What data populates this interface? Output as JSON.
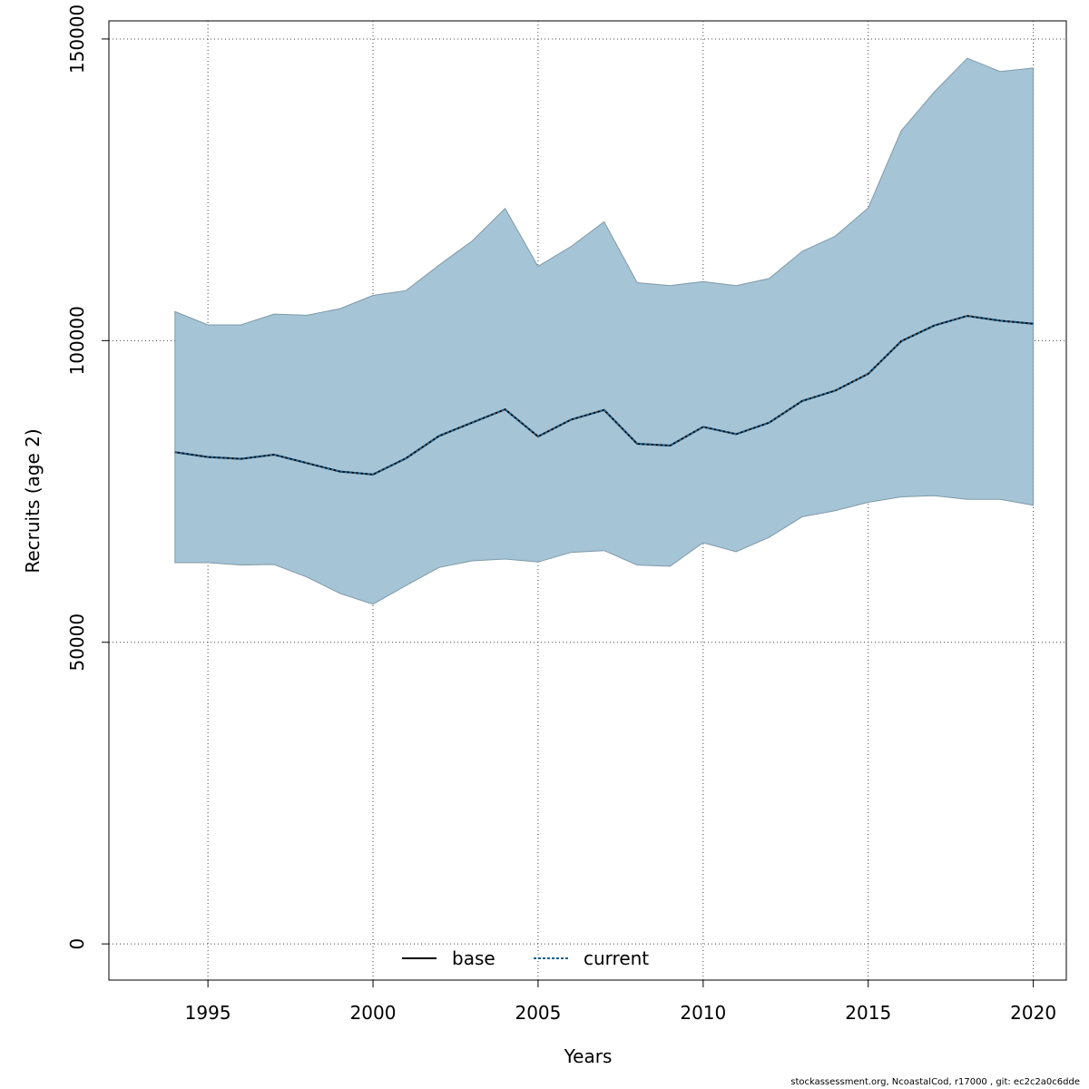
{
  "chart_data": {
    "type": "area",
    "xlabel": "Years",
    "ylabel": "Recruits (age 2)",
    "xlim": [
      1992,
      2021
    ],
    "ylim": [
      -6000,
      153000
    ],
    "x_ticks": [
      1995,
      2000,
      2005,
      2010,
      2015,
      2020
    ],
    "y_ticks": [
      0,
      50000,
      100000,
      150000
    ],
    "grid": true,
    "legend": {
      "placement": "bottom",
      "entries": [
        "base",
        "current"
      ]
    },
    "colors": {
      "band": "#a5c4d5",
      "band_edge": "#7f9aa8",
      "base": "#000000",
      "current": "#1f5f8b",
      "grid": "#444444"
    },
    "x": [
      1994,
      1995,
      1996,
      1997,
      1998,
      1999,
      2000,
      2001,
      2002,
      2003,
      2004,
      2005,
      2006,
      2007,
      2008,
      2009,
      2010,
      2011,
      2012,
      2013,
      2014,
      2015,
      2016,
      2017,
      2018,
      2019,
      2020
    ],
    "band_upper": [
      104800,
      102600,
      102600,
      104400,
      104200,
      105300,
      107500,
      108300,
      112500,
      116500,
      121900,
      112300,
      115600,
      119700,
      109600,
      109100,
      109800,
      109100,
      110300,
      114800,
      117300,
      122000,
      134800,
      141200,
      146800,
      144600,
      145200
    ],
    "band_lower": [
      63200,
      63200,
      62800,
      62900,
      60800,
      58100,
      56300,
      59400,
      62400,
      63500,
      63800,
      63300,
      64900,
      65200,
      62800,
      62600,
      66500,
      65000,
      67400,
      70800,
      71800,
      73200,
      74100,
      74300,
      73700,
      73700,
      72700
    ],
    "series": [
      {
        "name": "base",
        "values": [
          81500,
          80700,
          80400,
          81100,
          79700,
          78300,
          77800,
          80500,
          84200,
          86400,
          88600,
          84100,
          86900,
          88500,
          82900,
          82600,
          85700,
          84500,
          86400,
          90000,
          91700,
          94500,
          99900,
          102500,
          104100,
          103300,
          102800
        ]
      },
      {
        "name": "current",
        "values": [
          81500,
          80700,
          80400,
          81100,
          79700,
          78300,
          77800,
          80500,
          84200,
          86400,
          88600,
          84100,
          86900,
          88500,
          82900,
          82600,
          85700,
          84500,
          86400,
          90000,
          91700,
          94500,
          99900,
          102500,
          104100,
          103300,
          102800
        ]
      }
    ]
  },
  "footer": "stockassessment.org, NcoastalCod, r17000 , git: ec2c2a0c6dde"
}
